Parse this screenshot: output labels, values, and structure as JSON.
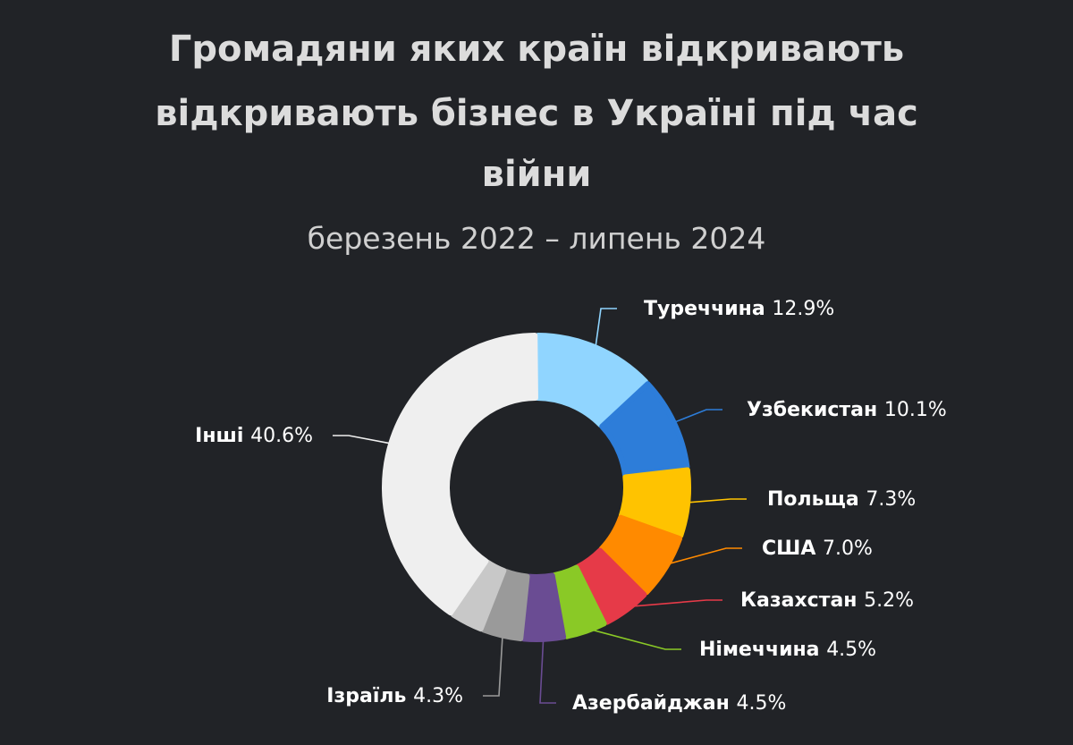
{
  "chart_data": {
    "type": "pie",
    "title_lines": [
      "Громадяни яких країн відкривають",
      "відкривають бізнес в Україні під час",
      "війни"
    ],
    "subtitle": "березень 2022 – липень 2024",
    "unit": "%",
    "slices": [
      {
        "name": "Туреччина",
        "value": 12.9,
        "display": "12.9%",
        "color": "#90d5ff"
      },
      {
        "name": "Узбекистан",
        "value": 10.1,
        "display": "10.1%",
        "color": "#2d7dd9"
      },
      {
        "name": "Польща",
        "value": 7.3,
        "display": "7.3%",
        "color": "#ffc300"
      },
      {
        "name": "США",
        "value": 7.0,
        "display": "7.0%",
        "color": "#ff8a00"
      },
      {
        "name": "Казахстан",
        "value": 5.2,
        "display": "5.2%",
        "color": "#e63a48"
      },
      {
        "name": "Німеччина",
        "value": 4.5,
        "display": "4.5%",
        "color": "#8ac926"
      },
      {
        "name": "Азербайджан",
        "value": 4.5,
        "display": "4.5%",
        "color": "#6a4c93"
      },
      {
        "name": "Ізраїль",
        "value": 4.3,
        "display": "4.3%",
        "color": "#9a9a9a"
      },
      {
        "name": "",
        "value": 3.6,
        "display": "",
        "color": "#c8c8c8"
      },
      {
        "name": "Інші",
        "value": 40.6,
        "display": "40.6%",
        "color": "#efefef"
      }
    ]
  }
}
